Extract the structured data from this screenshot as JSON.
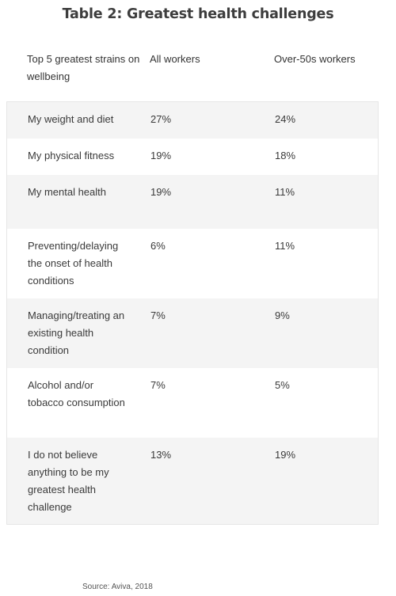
{
  "title": "Table 2: Greatest health challenges",
  "columns": [
    "Top 5 greatest strains on wellbeing",
    "All workers",
    "Over-50s workers"
  ],
  "rows": [
    {
      "label": "My weight and diet",
      "all": "27%",
      "over50": "24%"
    },
    {
      "label": "My physical fitness",
      "all": "19%",
      "over50": "18%"
    },
    {
      "label": "My mental health",
      "all": "19%",
      "over50": "11%"
    },
    {
      "label": "Preventing/delaying the onset of health conditions",
      "all": "6%",
      "over50": "11%"
    },
    {
      "label": "Managing/treating an existing health condition",
      "all": "7%",
      "over50": "9%"
    },
    {
      "label": "Alcohol and/or tobacco consumption",
      "all": "7%",
      "over50": "5%"
    },
    {
      "label": "I do not believe anything to be my greatest health challenge",
      "all": "13%",
      "over50": "19%"
    }
  ],
  "source": "Source: Aviva, 2018"
}
